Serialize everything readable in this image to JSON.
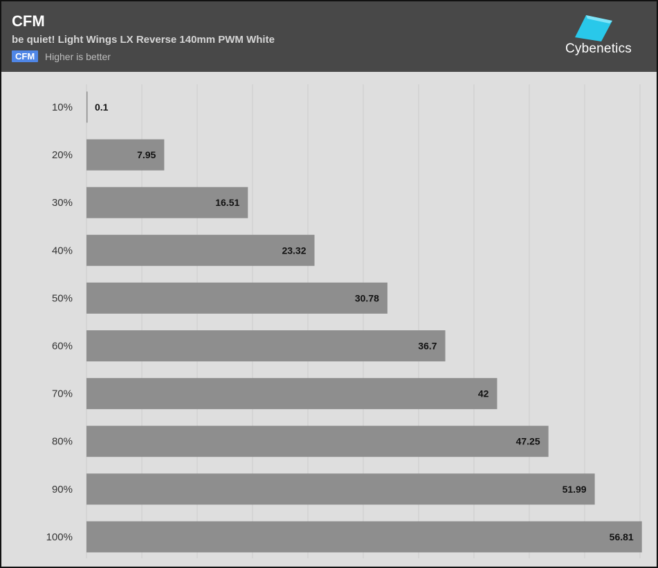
{
  "header": {
    "title": "CFM",
    "subtitle": "be quiet! Light Wings LX Reverse 140mm PWM White",
    "legend_badge": "CFM",
    "legend_note": "Higher is better",
    "logo_text": "Cybenetics"
  },
  "colors": {
    "header_bg": "#484848",
    "plot_bg": "#dedede",
    "bar": "#8e8e8e",
    "legend_badge": "#4f86e6",
    "logo_accent": "#29c8ea"
  },
  "chart_data": {
    "type": "bar",
    "orientation": "horizontal",
    "title": "CFM",
    "subtitle": "be quiet! Light Wings LX Reverse 140mm PWM White",
    "categories": [
      "10%",
      "20%",
      "30%",
      "40%",
      "50%",
      "60%",
      "70%",
      "80%",
      "90%",
      "100%"
    ],
    "series": [
      {
        "name": "CFM",
        "values": [
          0.1,
          7.95,
          16.51,
          23.32,
          30.78,
          36.7,
          42,
          47.25,
          51.99,
          56.81
        ]
      }
    ],
    "xlim": [
      0,
      57
    ],
    "grid": true,
    "legend": "top-left"
  }
}
